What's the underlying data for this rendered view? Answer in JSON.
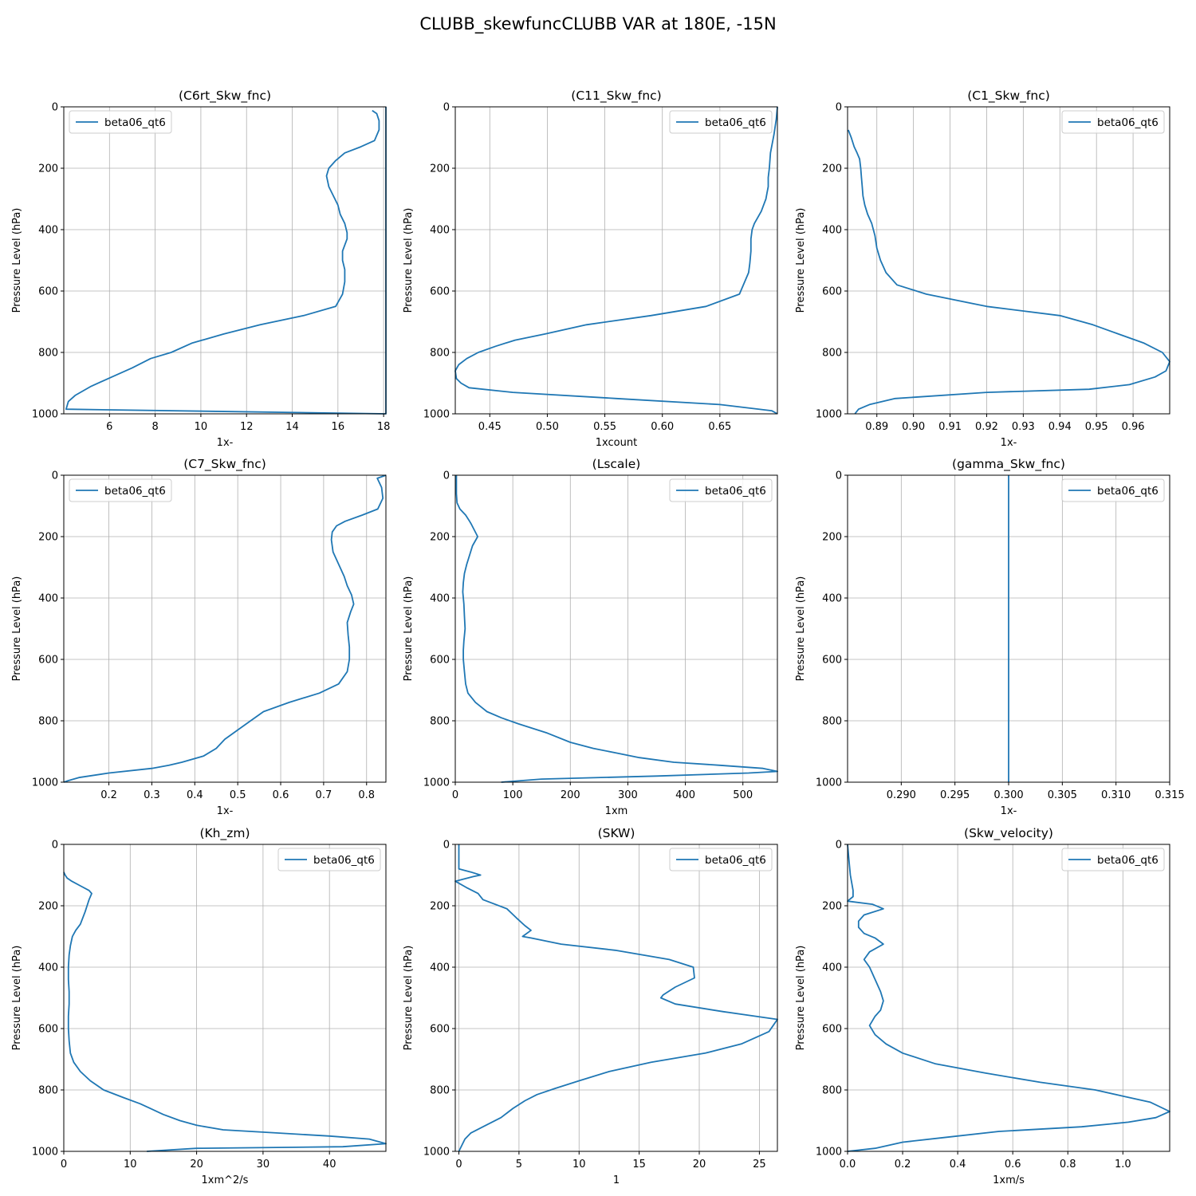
{
  "figure": {
    "suptitle": "CLUBB_skewfuncCLUBB VAR at 180E, -15N"
  },
  "colors": {
    "line": "#1f77b4",
    "grid": "#b0b0b0",
    "legend_border": "#cccccc"
  },
  "chart_data": [
    {
      "type": "line",
      "title": "(C6rt_Skw_fnc)",
      "xlabel": "1x-",
      "ylabel": "Pressure Level (hPa)",
      "legend_placement": "upper left",
      "grid": true,
      "y_inverted": true,
      "xlim": [
        4.0,
        18.1
      ],
      "ylim": [
        1000,
        0
      ],
      "xticks": [
        6,
        8,
        10,
        12,
        14,
        16,
        18
      ],
      "xtick_labels": [
        "6",
        "8",
        "10",
        "12",
        "14",
        "16",
        "18"
      ],
      "yticks": [
        0,
        200,
        400,
        600,
        800,
        1000
      ],
      "series": [
        {
          "name": "beta06_qt6",
          "x": [
            17.5,
            17.7,
            17.8,
            17.8,
            17.6,
            17.0,
            16.3,
            15.9,
            15.6,
            15.5,
            15.6,
            15.8,
            16.0,
            16.1,
            16.3,
            16.4,
            16.4,
            16.2,
            16.2,
            16.3,
            16.3,
            16.2,
            15.9,
            14.5,
            12.6,
            11.0,
            9.6,
            8.7,
            7.8,
            7.0,
            6.1,
            5.2,
            4.5,
            4.2,
            4.1,
            18.1,
            18.1
          ],
          "y": [
            12,
            22,
            45,
            75,
            110,
            130,
            150,
            175,
            200,
            225,
            260,
            290,
            320,
            350,
            380,
            410,
            430,
            470,
            500,
            530,
            570,
            610,
            650,
            680,
            710,
            740,
            770,
            800,
            820,
            850,
            880,
            910,
            940,
            960,
            985,
            1000,
            0
          ]
        }
      ]
    },
    {
      "type": "line",
      "title": "(C11_Skw_fnc)",
      "xlabel": "1xcount",
      "ylabel": "Pressure Level (hPa)",
      "legend_placement": "upper right",
      "grid": true,
      "y_inverted": true,
      "xlim": [
        0.42,
        0.7
      ],
      "ylim": [
        1000,
        0
      ],
      "xticks": [
        0.45,
        0.5,
        0.55,
        0.6,
        0.65
      ],
      "xtick_labels": [
        "0.45",
        "0.50",
        "0.55",
        "0.60",
        "0.65"
      ],
      "yticks": [
        0,
        200,
        400,
        600,
        800,
        1000
      ],
      "series": [
        {
          "name": "beta06_qt6",
          "x": [
            0.7,
            0.699,
            0.697,
            0.694,
            0.693,
            0.692,
            0.692,
            0.691,
            0.69,
            0.688,
            0.686,
            0.683,
            0.68,
            0.678,
            0.677,
            0.677,
            0.676,
            0.675,
            0.667,
            0.638,
            0.59,
            0.534,
            0.498,
            0.472,
            0.455,
            0.44,
            0.43,
            0.423,
            0.42,
            0.421,
            0.425,
            0.432,
            0.47,
            0.56,
            0.65,
            0.695,
            0.7
          ],
          "y": [
            0,
            40,
            90,
            150,
            200,
            230,
            260,
            280,
            300,
            320,
            340,
            360,
            380,
            400,
            430,
            470,
            510,
            540,
            610,
            650,
            680,
            710,
            740,
            760,
            780,
            800,
            820,
            840,
            860,
            885,
            900,
            915,
            930,
            950,
            970,
            990,
            1000
          ]
        }
      ]
    },
    {
      "type": "line",
      "title": "(C1_Skw_fnc)",
      "xlabel": "1x-",
      "ylabel": "Pressure Level (hPa)",
      "legend_placement": "upper right",
      "grid": true,
      "y_inverted": true,
      "xlim": [
        0.882,
        0.97
      ],
      "ylim": [
        1000,
        0
      ],
      "xticks": [
        0.89,
        0.9,
        0.91,
        0.92,
        0.93,
        0.94,
        0.95,
        0.96
      ],
      "xtick_labels": [
        "0.89",
        "0.90",
        "0.91",
        "0.92",
        "0.93",
        "0.94",
        "0.95",
        "0.96"
      ],
      "yticks": [
        0,
        200,
        400,
        600,
        800,
        1000
      ],
      "series": [
        {
          "name": "beta06_qt6",
          "x": [
            0.8822,
            0.883,
            0.8838,
            0.8846,
            0.8853,
            0.8856,
            0.8858,
            0.886,
            0.8862,
            0.8867,
            0.8875,
            0.8886,
            0.8895,
            0.89,
            0.891,
            0.8925,
            0.8955,
            0.9035,
            0.92,
            0.94,
            0.949,
            0.956,
            0.963,
            0.968,
            0.97,
            0.969,
            0.966,
            0.959,
            0.948,
            0.92,
            0.895,
            0.888,
            0.885,
            0.884
          ],
          "y": [
            75,
            100,
            130,
            150,
            170,
            200,
            230,
            260,
            290,
            320,
            350,
            380,
            420,
            460,
            500,
            540,
            580,
            610,
            650,
            680,
            710,
            740,
            770,
            800,
            830,
            860,
            880,
            905,
            920,
            930,
            950,
            970,
            985,
            1000
          ]
        }
      ]
    },
    {
      "type": "line",
      "title": "(C7_Skw_fnc)",
      "xlabel": "1x-",
      "ylabel": "Pressure Level (hPa)",
      "legend_placement": "upper left",
      "grid": true,
      "y_inverted": true,
      "xlim": [
        0.095,
        0.845
      ],
      "ylim": [
        1000,
        0
      ],
      "xticks": [
        0.2,
        0.3,
        0.4,
        0.5,
        0.6,
        0.7,
        0.8
      ],
      "xtick_labels": [
        "0.2",
        "0.3",
        "0.4",
        "0.5",
        "0.6",
        "0.7",
        "0.8"
      ],
      "yticks": [
        0,
        200,
        400,
        600,
        800,
        1000
      ],
      "series": [
        {
          "name": "beta06_qt6",
          "x": [
            0.845,
            0.825,
            0.835,
            0.838,
            0.826,
            0.79,
            0.75,
            0.73,
            0.72,
            0.718,
            0.722,
            0.735,
            0.748,
            0.755,
            0.765,
            0.77,
            0.763,
            0.755,
            0.757,
            0.76,
            0.76,
            0.755,
            0.735,
            0.69,
            0.62,
            0.56,
            0.53,
            0.5,
            0.47,
            0.45,
            0.42,
            0.37,
            0.34,
            0.3,
            0.2,
            0.13,
            0.105,
            0.095
          ],
          "y": [
            0,
            10,
            40,
            75,
            110,
            130,
            150,
            165,
            185,
            210,
            250,
            290,
            330,
            360,
            390,
            420,
            445,
            480,
            520,
            560,
            600,
            640,
            680,
            710,
            740,
            770,
            800,
            830,
            860,
            890,
            915,
            935,
            945,
            955,
            970,
            985,
            995,
            1000
          ]
        }
      ]
    },
    {
      "type": "line",
      "title": "(Lscale)",
      "xlabel": "1xm",
      "ylabel": "Pressure Level (hPa)",
      "legend_placement": "upper right",
      "grid": true,
      "y_inverted": true,
      "xlim": [
        0,
        560
      ],
      "ylim": [
        1000,
        0
      ],
      "xticks": [
        0,
        100,
        200,
        300,
        400,
        500
      ],
      "xtick_labels": [
        "0",
        "100",
        "200",
        "300",
        "400",
        "500"
      ],
      "yticks": [
        0,
        200,
        400,
        600,
        800,
        1000
      ],
      "series": [
        {
          "name": "beta06_qt6",
          "x": [
            2,
            2,
            3,
            8,
            18,
            25,
            28,
            39,
            30,
            25,
            20,
            16,
            14,
            13,
            15,
            16,
            17,
            15,
            14,
            14,
            16,
            18,
            22,
            35,
            55,
            80,
            110,
            160,
            200,
            240,
            280,
            320,
            380,
            460,
            535,
            560,
            510,
            350,
            150,
            80
          ],
          "y": [
            0,
            60,
            90,
            110,
            130,
            150,
            160,
            200,
            230,
            260,
            290,
            320,
            350,
            380,
            420,
            460,
            500,
            540,
            570,
            600,
            640,
            680,
            710,
            740,
            770,
            790,
            810,
            840,
            870,
            890,
            905,
            920,
            935,
            945,
            955,
            965,
            970,
            980,
            990,
            1000
          ]
        }
      ]
    },
    {
      "type": "line",
      "title": "(gamma_Skw_fnc)",
      "xlabel": "1x-",
      "ylabel": "Pressure Level (hPa)",
      "legend_placement": "upper right",
      "grid": true,
      "y_inverted": true,
      "xlim": [
        0.285,
        0.315
      ],
      "ylim": [
        1000,
        0
      ],
      "xticks": [
        0.29,
        0.295,
        0.3,
        0.305,
        0.31,
        0.315
      ],
      "xtick_labels": [
        "0.290",
        "0.295",
        "0.300",
        "0.305",
        "0.310",
        "0.315"
      ],
      "yticks": [
        0,
        200,
        400,
        600,
        800,
        1000
      ],
      "series": [
        {
          "name": "beta06_qt6",
          "x": [
            0.3,
            0.3
          ],
          "y": [
            0,
            1000
          ]
        }
      ]
    },
    {
      "type": "line",
      "title": "(Kh_zm)",
      "xlabel": "1xm^2/s",
      "ylabel": "Pressure Level (hPa)",
      "legend_placement": "upper right",
      "grid": true,
      "y_inverted": true,
      "xlim": [
        0,
        48.5
      ],
      "ylim": [
        1000,
        0
      ],
      "xticks": [
        0,
        10,
        20,
        30,
        40
      ],
      "xtick_labels": [
        "0",
        "10",
        "20",
        "30",
        "40"
      ],
      "yticks": [
        0,
        200,
        400,
        600,
        800,
        1000
      ],
      "series": [
        {
          "name": "beta06_qt6",
          "x": [
            0,
            0.2,
            0.5,
            1.2,
            2.5,
            3.8,
            4.2,
            3.8,
            3.5,
            3.2,
            2.5,
            1.8,
            1.3,
            1.0,
            0.8,
            0.7,
            0.7,
            0.8,
            0.8,
            0.7,
            0.7,
            0.8,
            1.0,
            1.5,
            2.5,
            4.0,
            6.0,
            9.0,
            11.5,
            13.0,
            15.0,
            17.5,
            20.0,
            24.0,
            32.0,
            40.0,
            46.0,
            48.5,
            42.0,
            20.0,
            12.5
          ],
          "y": [
            90,
            100,
            110,
            120,
            135,
            150,
            160,
            180,
            200,
            220,
            260,
            280,
            300,
            330,
            360,
            400,
            440,
            480,
            520,
            560,
            600,
            640,
            680,
            710,
            740,
            770,
            800,
            825,
            845,
            860,
            880,
            900,
            915,
            930,
            940,
            950,
            960,
            975,
            985,
            990,
            1000
          ]
        }
      ]
    },
    {
      "type": "line",
      "title": "(SKW)",
      "xlabel": "1",
      "ylabel": "Pressure Level (hPa)",
      "legend_placement": "upper right",
      "grid": true,
      "y_inverted": true,
      "xlim": [
        -0.3,
        26.5
      ],
      "ylim": [
        1000,
        0
      ],
      "xticks": [
        0,
        5,
        10,
        15,
        20,
        25
      ],
      "xtick_labels": [
        "0",
        "5",
        "10",
        "15",
        "20",
        "25"
      ],
      "yticks": [
        0,
        200,
        400,
        600,
        800,
        1000
      ],
      "series": [
        {
          "name": "beta06_qt6",
          "x": [
            0,
            0,
            1.0,
            1.8,
            1.2,
            -0.3,
            0.6,
            1.6,
            2.0,
            4.0,
            4.8,
            5.5,
            6.0,
            5.3,
            6.0,
            8.5,
            13.0,
            17.5,
            19.5,
            19.6,
            18.0,
            17.0,
            16.8,
            18.0,
            22.0,
            26.5,
            25.8,
            23.5,
            20.5,
            16.0,
            12.5,
            10.0,
            8.0,
            6.5,
            5.5,
            4.5,
            3.5,
            2.0,
            1.0,
            0.5,
            0
          ],
          "y": [
            0,
            80,
            90,
            100,
            105,
            120,
            140,
            160,
            180,
            210,
            240,
            265,
            280,
            300,
            305,
            325,
            345,
            375,
            400,
            435,
            465,
            490,
            500,
            520,
            545,
            570,
            610,
            650,
            680,
            710,
            740,
            770,
            795,
            815,
            835,
            860,
            890,
            920,
            940,
            960,
            1000
          ]
        }
      ]
    },
    {
      "type": "line",
      "title": "(Skw_velocity)",
      "xlabel": "1xm/s",
      "ylabel": "Pressure Level (hPa)",
      "legend_placement": "upper right",
      "grid": true,
      "y_inverted": true,
      "xlim": [
        0,
        1.17
      ],
      "ylim": [
        1000,
        0
      ],
      "xticks": [
        0,
        0.2,
        0.4,
        0.6,
        0.8,
        1.0
      ],
      "xtick_labels": [
        "0.0",
        "0.2",
        "0.4",
        "0.6",
        "0.8",
        "1.0"
      ],
      "yticks": [
        0,
        200,
        400,
        600,
        800,
        1000
      ],
      "series": [
        {
          "name": "beta06_qt6",
          "x": [
            0,
            0.005,
            0.01,
            0.02,
            0.02,
            0.0,
            0.09,
            0.13,
            0.06,
            0.04,
            0.04,
            0.06,
            0.1,
            0.13,
            0.08,
            0.06,
            0.08,
            0.1,
            0.12,
            0.13,
            0.12,
            0.1,
            0.08,
            0.1,
            0.14,
            0.2,
            0.32,
            0.5,
            0.7,
            0.9,
            1.0,
            1.1,
            1.17,
            1.12,
            1.02,
            0.85,
            0.55,
            0.35,
            0.2,
            0.1,
            0
          ],
          "y": [
            0,
            50,
            100,
            150,
            170,
            185,
            195,
            210,
            230,
            250,
            270,
            290,
            305,
            325,
            350,
            375,
            400,
            440,
            480,
            510,
            540,
            560,
            590,
            620,
            650,
            680,
            715,
            745,
            775,
            800,
            820,
            840,
            870,
            890,
            905,
            920,
            935,
            955,
            970,
            990,
            1000
          ]
        }
      ]
    }
  ]
}
